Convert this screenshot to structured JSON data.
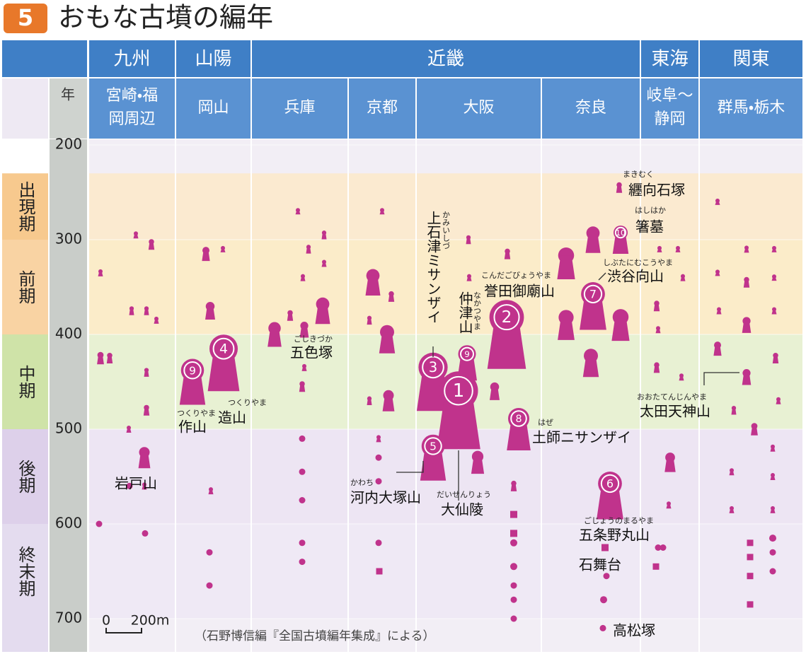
{
  "title_num": "5",
  "title": "おもな古墳の編年",
  "year_header": "年",
  "regions": [
    {
      "name": "九州",
      "prefs": [
        [
          "宮崎・福",
          "岡周辺"
        ]
      ]
    },
    {
      "name": "山陽",
      "prefs": [
        [
          "岡山"
        ]
      ]
    },
    {
      "name": "近畿",
      "prefs": [
        [
          "兵庫"
        ],
        [
          "京都"
        ],
        [
          "大阪"
        ],
        [
          "奈良"
        ]
      ]
    },
    {
      "name": "東海",
      "prefs": [
        [
          "岐阜〜",
          "静岡"
        ]
      ]
    },
    {
      "name": "関東",
      "prefs": [
        [
          "群馬・栃木"
        ]
      ]
    }
  ],
  "year_range": [
    200,
    700
  ],
  "year_ticks": [
    200,
    300,
    400,
    500,
    600,
    700
  ],
  "periods": [
    {
      "name": "出現期",
      "from": 230,
      "to": 300,
      "color": "#f7c98e",
      "band": "#fbead0"
    },
    {
      "name": "前期",
      "from": 300,
      "to": 400,
      "color": "#f9d3a3",
      "band": "#fbecc9"
    },
    {
      "name": "中期",
      "from": 400,
      "to": 500,
      "color": "#cfe3a8",
      "band": "#e8f1d3"
    },
    {
      "name": "後期",
      "from": 500,
      "to": 600,
      "color": "#ddd0ea",
      "band": "#ede5f3"
    },
    {
      "name": "終末期",
      "from": 600,
      "to": 700,
      "color": "#e4dcef",
      "band": "#efe9f5"
    }
  ],
  "mark_color": "#c0338c",
  "tombs": [
    {
      "year": 335,
      "size": 40,
      "shape": "keyhole"
    },
    {
      "year": 425,
      "size": 70,
      "shape": "keyhole"
    },
    {
      "year": 425,
      "size": 60,
      "shape": "keyhole"
    },
    {
      "year": 295,
      "size": 40,
      "shape": "keyhole"
    },
    {
      "year": 305,
      "size": 60,
      "shape": "keyhole"
    },
    {
      "year": 375,
      "size": 50,
      "shape": "keyhole"
    },
    {
      "year": 375,
      "size": 50,
      "shape": "keyhole"
    },
    {
      "year": 385,
      "size": 40,
      "shape": "keyhole"
    },
    {
      "year": 440,
      "size": 50,
      "shape": "keyhole"
    },
    {
      "year": 480,
      "size": 60,
      "shape": "keyhole"
    },
    {
      "year": 500,
      "size": 40,
      "shape": "keyhole"
    },
    {
      "year": 530,
      "size": 120,
      "shape": "keyhole",
      "name": "岩戸山"
    },
    {
      "year": 560,
      "size": 20,
      "shape": "circle"
    },
    {
      "year": 560,
      "size": 40,
      "shape": "keyhole"
    },
    {
      "year": 600,
      "size": 20,
      "shape": "circle"
    },
    {
      "year": 610,
      "size": 20,
      "shape": "circle"
    },
    {
      "year": 315,
      "size": 80,
      "shape": "keyhole"
    },
    {
      "year": 310,
      "size": 30,
      "shape": "keyhole"
    },
    {
      "year": 375,
      "size": 100,
      "shape": "keyhole"
    },
    {
      "year": 450,
      "size": 260,
      "shape": "keyhole",
      "name": "作山",
      "reading": "つくりやま",
      "num": 9
    },
    {
      "year": 430,
      "size": 320,
      "shape": "keyhole",
      "name": "造山",
      "reading": "つくりやま",
      "num": 4
    },
    {
      "year": 565,
      "size": 40,
      "shape": "keyhole"
    },
    {
      "year": 630,
      "size": 20,
      "shape": "circle"
    },
    {
      "year": 665,
      "size": 20,
      "shape": "circle"
    },
    {
      "year": 270,
      "size": 20,
      "shape": "keyhole"
    },
    {
      "year": 310,
      "size": 50,
      "shape": "keyhole"
    },
    {
      "year": 295,
      "size": 50,
      "shape": "keyhole"
    },
    {
      "year": 325,
      "size": 40,
      "shape": "keyhole"
    },
    {
      "year": 340,
      "size": 40,
      "shape": "keyhole"
    },
    {
      "year": 380,
      "size": 60,
      "shape": "keyhole"
    },
    {
      "year": 400,
      "size": 140,
      "shape": "keyhole"
    },
    {
      "year": 375,
      "size": 150,
      "shape": "keyhole"
    },
    {
      "year": 395,
      "size": 90,
      "shape": "keyhole",
      "name": "五色塚",
      "reading": "ごしきづか"
    },
    {
      "year": 435,
      "size": 40,
      "shape": "keyhole"
    },
    {
      "year": 455,
      "size": 60,
      "shape": "keyhole"
    },
    {
      "year": 510,
      "size": 20,
      "shape": "circle"
    },
    {
      "year": 545,
      "size": 20,
      "shape": "circle"
    },
    {
      "year": 575,
      "size": 20,
      "shape": "circle"
    },
    {
      "year": 620,
      "size": 20,
      "shape": "circle"
    },
    {
      "year": 640,
      "size": 20,
      "shape": "circle"
    },
    {
      "year": 270,
      "size": 30,
      "shape": "keyhole"
    },
    {
      "year": 345,
      "size": 150,
      "shape": "keyhole"
    },
    {
      "year": 360,
      "size": 60,
      "shape": "keyhole"
    },
    {
      "year": 385,
      "size": 50,
      "shape": "keyhole"
    },
    {
      "year": 405,
      "size": 160,
      "shape": "keyhole"
    },
    {
      "year": 470,
      "size": 50,
      "shape": "keyhole"
    },
    {
      "year": 470,
      "size": 120,
      "shape": "keyhole"
    },
    {
      "year": 510,
      "size": 40,
      "shape": "keyhole"
    },
    {
      "year": 530,
      "size": 20,
      "shape": "circle"
    },
    {
      "year": 555,
      "size": 20,
      "shape": "circle"
    },
    {
      "year": 620,
      "size": 20,
      "shape": "circle"
    },
    {
      "year": 650,
      "size": 30,
      "shape": "square"
    },
    {
      "year": 300,
      "size": 50,
      "shape": "keyhole"
    },
    {
      "year": 340,
      "size": 40,
      "shape": "keyhole"
    },
    {
      "year": 315,
      "size": 60,
      "shape": "keyhole"
    },
    {
      "year": 450,
      "size": 330,
      "shape": "keyhole",
      "name": "上石津ミサンザイ",
      "reading": "かみいしづ",
      "num": 3
    },
    {
      "year": 430,
      "size": 200,
      "shape": "keyhole",
      "name": "仲津山",
      "reading": "なかつやま",
      "num": 9
    },
    {
      "year": 400,
      "size": 390,
      "shape": "keyhole",
      "name": "誉田御廟山",
      "reading": "こんだごびょうやま",
      "num": 2
    },
    {
      "year": 480,
      "size": 440,
      "shape": "keyhole",
      "name": "大仙陵",
      "reading": "だいせんりょう",
      "num": 1
    },
    {
      "year": 460,
      "size": 100,
      "shape": "keyhole"
    },
    {
      "year": 500,
      "size": 240,
      "shape": "keyhole",
      "name": "土師ニサンザイ",
      "reading": "はぜ",
      "num": 8
    },
    {
      "year": 530,
      "size": 260,
      "shape": "keyhole",
      "name": "河内大塚山",
      "reading": "かわち",
      "num": 5
    },
    {
      "year": 535,
      "size": 130,
      "shape": "keyhole"
    },
    {
      "year": 560,
      "size": 60,
      "shape": "keyhole"
    },
    {
      "year": 590,
      "size": 40,
      "shape": "square"
    },
    {
      "year": 610,
      "size": 40,
      "shape": "square"
    },
    {
      "year": 620,
      "size": 40,
      "shape": "circle"
    },
    {
      "year": 645,
      "size": 40,
      "shape": "circle"
    },
    {
      "year": 665,
      "size": 30,
      "shape": "circle"
    },
    {
      "year": 680,
      "size": 30,
      "shape": "circle"
    },
    {
      "year": 700,
      "size": 30,
      "shape": "circle"
    },
    {
      "year": 245,
      "size": 60,
      "shape": "keyhole",
      "name": "纒向石塚",
      "reading": "まきむく"
    },
    {
      "year": 300,
      "size": 160,
      "shape": "keyhole",
      "name": "箸墓",
      "reading": "はしはか",
      "num": 10
    },
    {
      "year": 300,
      "size": 150,
      "shape": "keyhole"
    },
    {
      "year": 325,
      "size": 180,
      "shape": "keyhole"
    },
    {
      "year": 370,
      "size": 270,
      "shape": "keyhole",
      "name": "渋谷向山",
      "reading": "しぶたにむこうやま",
      "num": 7
    },
    {
      "year": 390,
      "size": 170,
      "shape": "keyhole"
    },
    {
      "year": 390,
      "size": 180,
      "shape": "keyhole"
    },
    {
      "year": 430,
      "size": 160,
      "shape": "keyhole"
    },
    {
      "year": 570,
      "size": 270,
      "shape": "keyhole",
      "name": "五条野丸山",
      "reading": "ごじょうのまるやま",
      "num": 6
    },
    {
      "year": 625,
      "size": 40,
      "shape": "square",
      "name": "石舞台"
    },
    {
      "year": 655,
      "size": 30,
      "shape": "circle"
    },
    {
      "year": 680,
      "size": 40,
      "shape": "circle"
    },
    {
      "year": 710,
      "size": 20,
      "shape": "circle",
      "name": "高松塚"
    },
    {
      "year": 310,
      "size": 30,
      "shape": "keyhole"
    },
    {
      "year": 310,
      "size": 30,
      "shape": "keyhole"
    },
    {
      "year": 340,
      "size": 40,
      "shape": "keyhole"
    },
    {
      "year": 370,
      "size": 60,
      "shape": "keyhole"
    },
    {
      "year": 395,
      "size": 40,
      "shape": "keyhole"
    },
    {
      "year": 435,
      "size": 60,
      "shape": "keyhole"
    },
    {
      "year": 445,
      "size": 40,
      "shape": "keyhole"
    },
    {
      "year": 535,
      "size": 110,
      "shape": "keyhole"
    },
    {
      "year": 580,
      "size": 40,
      "shape": "keyhole"
    },
    {
      "year": 625,
      "size": 20,
      "shape": "circle"
    },
    {
      "year": 625,
      "size": 20,
      "shape": "circle"
    },
    {
      "year": 645,
      "size": 20,
      "shape": "square"
    },
    {
      "year": 260,
      "size": 20,
      "shape": "keyhole"
    },
    {
      "year": 335,
      "size": 30,
      "shape": "keyhole"
    },
    {
      "year": 375,
      "size": 40,
      "shape": "keyhole"
    },
    {
      "year": 415,
      "size": 80,
      "shape": "keyhole"
    },
    {
      "year": 310,
      "size": 40,
      "shape": "keyhole"
    },
    {
      "year": 345,
      "size": 60,
      "shape": "keyhole"
    },
    {
      "year": 390,
      "size": 90,
      "shape": "keyhole"
    },
    {
      "year": 445,
      "size": 90,
      "shape": "keyhole",
      "name": "太田天神山",
      "reading": "おおたてんじんやま"
    },
    {
      "year": 310,
      "size": 30,
      "shape": "keyhole"
    },
    {
      "year": 340,
      "size": 30,
      "shape": "keyhole"
    },
    {
      "year": 375,
      "size": 40,
      "shape": "keyhole"
    },
    {
      "year": 425,
      "size": 60,
      "shape": "keyhole"
    },
    {
      "year": 470,
      "size": 40,
      "shape": "keyhole"
    },
    {
      "year": 500,
      "size": 70,
      "shape": "keyhole"
    },
    {
      "year": 520,
      "size": 40,
      "shape": "keyhole"
    },
    {
      "year": 550,
      "size": 40,
      "shape": "keyhole"
    },
    {
      "year": 585,
      "size": 40,
      "shape": "keyhole"
    },
    {
      "year": 615,
      "size": 40,
      "shape": "circle"
    },
    {
      "year": 480,
      "size": 50,
      "shape": "keyhole"
    },
    {
      "year": 545,
      "size": 40,
      "shape": "keyhole"
    },
    {
      "year": 585,
      "size": 40,
      "shape": "keyhole"
    },
    {
      "year": 620,
      "size": 30,
      "shape": "square"
    },
    {
      "year": 635,
      "size": 30,
      "shape": "square"
    },
    {
      "year": 655,
      "size": 30,
      "shape": "square"
    },
    {
      "year": 685,
      "size": 30,
      "shape": "square"
    },
    {
      "year": 630,
      "size": 30,
      "shape": "circle"
    },
    {
      "year": 650,
      "size": 30,
      "shape": "circle"
    }
  ],
  "scale_ticks": [
    {
      "value": 0,
      "label": "0"
    },
    {
      "value": 200,
      "label": "200m"
    }
  ],
  "source": "（石野博信編『全国古墳編年集成』による）"
}
